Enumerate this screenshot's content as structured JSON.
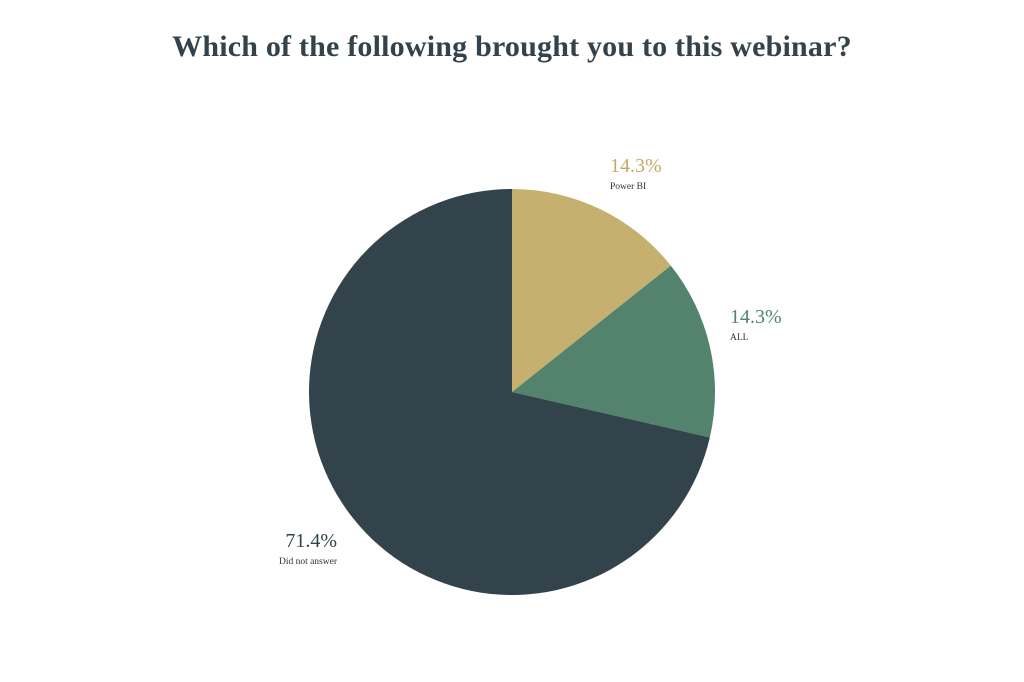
{
  "chart_data": {
    "type": "pie",
    "title": "Which of the following brought you to this webinar?",
    "slices": [
      {
        "label": "Power BI",
        "value": 14.3,
        "display": "14.3%",
        "color": "#c6b06f",
        "label_color": "#c4aa66"
      },
      {
        "label": "ALL",
        "value": 14.3,
        "display": "14.3%",
        "color": "#53836c",
        "label_color": "#53836c"
      },
      {
        "label": "Did not answer",
        "value": 71.4,
        "display": "71.4%",
        "color": "#33434b",
        "label_color": "#33434b"
      }
    ],
    "start_angle_deg": 0,
    "direction": "clockwise",
    "legend": "none"
  }
}
